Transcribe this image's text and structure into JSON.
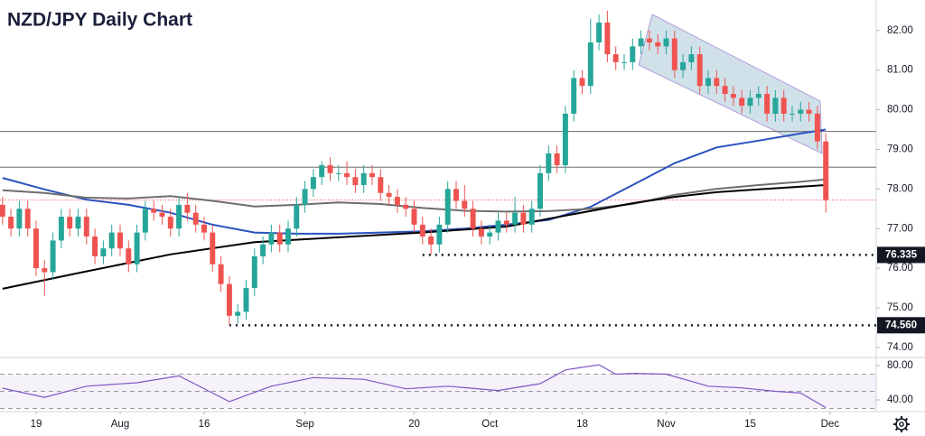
{
  "chart_data": {
    "type": "candlestick",
    "title": "NZD/JPY Daily Chart",
    "up_color": "#26a69a",
    "down_color": "#ef5350",
    "open": [
      77.6,
      77.3,
      77.0,
      77.5,
      77.0,
      76.0,
      75.9,
      76.7,
      77.3,
      77.0,
      77.3,
      76.8,
      76.3,
      76.5,
      76.9,
      76.5,
      76.1,
      76.9,
      77.5,
      77.4,
      77.3,
      77.0,
      77.6,
      77.4,
      77.1,
      76.9,
      76.1,
      75.6,
      74.8,
      74.9,
      75.5,
      76.3,
      76.6,
      76.9,
      76.6,
      77.0,
      77.6,
      78.0,
      78.3,
      78.6,
      78.4,
      78.4,
      78.3,
      78.1,
      78.4,
      78.3,
      77.9,
      77.8,
      77.6,
      77.5,
      77.1,
      76.8,
      76.6,
      77.1,
      78.0,
      77.7,
      77.5,
      77.0,
      76.8,
      76.9,
      77.2,
      77.1,
      77.4,
      77.1,
      77.5,
      78.4,
      78.9,
      78.6,
      79.9,
      80.8,
      80.6,
      81.7,
      82.2,
      81.4,
      81.2,
      81.2,
      81.6,
      81.8,
      81.7,
      81.6,
      81.8,
      81.0,
      81.2,
      81.4,
      80.6,
      80.8,
      80.6,
      80.4,
      80.3,
      80.1,
      80.3,
      80.4,
      79.9,
      80.3,
      79.9,
      79.9,
      80.0,
      79.9,
      79.2
    ],
    "high": [
      77.8,
      77.5,
      77.7,
      77.7,
      77.2,
      76.2,
      76.9,
      77.5,
      77.5,
      77.5,
      77.5,
      77.0,
      76.7,
      77.1,
      77.1,
      76.7,
      77.1,
      77.7,
      77.7,
      77.6,
      77.5,
      77.8,
      77.9,
      77.6,
      77.3,
      77.1,
      76.3,
      75.8,
      75.1,
      75.7,
      76.5,
      76.8,
      77.1,
      77.1,
      77.2,
      77.8,
      78.2,
      78.5,
      78.7,
      78.8,
      78.6,
      78.7,
      78.5,
      78.6,
      78.6,
      78.5,
      78.1,
      78.0,
      77.8,
      77.7,
      77.3,
      77.0,
      77.3,
      78.2,
      78.2,
      78.1,
      77.7,
      77.2,
      77.1,
      77.4,
      77.4,
      77.8,
      77.6,
      77.7,
      78.6,
      79.1,
      79.1,
      80.1,
      81.0,
      81.0,
      82.3,
      82.4,
      82.5,
      81.6,
      81.4,
      81.8,
      82.0,
      82.0,
      81.9,
      82.0,
      82.0,
      81.4,
      81.6,
      81.6,
      81.0,
      81.0,
      80.8,
      80.6,
      80.5,
      80.5,
      80.6,
      80.6,
      80.5,
      80.5,
      80.1,
      80.2,
      80.2,
      80.1,
      79.4
    ],
    "low": [
      77.1,
      76.8,
      76.8,
      76.8,
      75.8,
      75.3,
      75.7,
      76.5,
      76.8,
      76.8,
      76.6,
      76.1,
      76.1,
      76.3,
      76.3,
      75.9,
      75.9,
      76.7,
      77.2,
      77.1,
      76.8,
      76.8,
      77.2,
      76.9,
      76.7,
      75.9,
      75.4,
      74.56,
      74.6,
      74.7,
      75.3,
      76.1,
      76.4,
      76.4,
      76.4,
      76.8,
      77.4,
      77.8,
      78.1,
      78.2,
      78.2,
      78.1,
      77.9,
      77.9,
      78.1,
      77.7,
      77.6,
      77.4,
      77.3,
      76.9,
      76.6,
      76.34,
      76.4,
      76.9,
      77.5,
      77.3,
      76.8,
      76.6,
      76.6,
      76.7,
      76.9,
      76.9,
      76.9,
      76.9,
      77.3,
      78.2,
      78.4,
      78.4,
      79.7,
      80.4,
      80.4,
      81.5,
      81.2,
      81.0,
      81.0,
      81.0,
      81.4,
      81.5,
      81.4,
      81.4,
      80.8,
      80.8,
      81.0,
      80.4,
      80.4,
      80.4,
      80.2,
      80.1,
      79.9,
      79.9,
      80.1,
      79.7,
      79.7,
      79.7,
      79.7,
      79.7,
      79.7,
      79.0,
      77.4
    ],
    "close": [
      77.3,
      77.0,
      77.5,
      77.0,
      76.0,
      75.9,
      76.7,
      77.3,
      77.0,
      77.3,
      76.8,
      76.3,
      76.5,
      76.9,
      76.5,
      76.1,
      76.9,
      77.5,
      77.4,
      77.3,
      77.0,
      77.6,
      77.4,
      77.1,
      76.9,
      76.1,
      75.6,
      74.8,
      74.9,
      75.5,
      76.3,
      76.6,
      76.9,
      76.6,
      77.0,
      77.6,
      78.0,
      78.3,
      78.6,
      78.4,
      78.4,
      78.3,
      78.1,
      78.4,
      78.3,
      77.9,
      77.8,
      77.6,
      77.5,
      77.1,
      76.8,
      76.6,
      77.1,
      78.0,
      77.7,
      77.5,
      77.0,
      76.8,
      76.9,
      77.2,
      77.1,
      77.4,
      77.1,
      77.5,
      78.4,
      78.9,
      78.6,
      79.9,
      80.8,
      80.6,
      81.7,
      82.2,
      81.4,
      81.2,
      81.2,
      81.6,
      81.8,
      81.7,
      81.6,
      81.8,
      81.0,
      81.2,
      81.4,
      80.6,
      80.8,
      80.6,
      80.4,
      80.3,
      80.1,
      80.3,
      80.4,
      79.9,
      80.3,
      79.9,
      79.9,
      80.0,
      79.9,
      79.2,
      77.72
    ],
    "last_price_color": "#ef5350",
    "lines": [
      {
        "color": "#2a52be",
        "x": [
          0,
          5,
          10,
          15,
          20,
          25,
          30,
          35,
          40,
          45,
          50,
          55,
          60,
          65,
          70,
          75,
          80,
          85,
          90,
          95,
          98
        ],
        "values": [
          78.28,
          77.99,
          77.73,
          77.6,
          77.4,
          77.1,
          76.9,
          76.87,
          76.87,
          76.9,
          76.93,
          77.0,
          77.1,
          77.22,
          77.55,
          78.1,
          78.65,
          79.05,
          79.22,
          79.4,
          79.5
        ]
      },
      {
        "color": "#6e6e6e",
        "x": [
          0,
          5,
          10,
          15,
          20,
          25,
          30,
          35,
          40,
          45,
          50,
          55,
          60,
          65,
          70,
          75,
          80,
          85,
          90,
          95,
          98
        ],
        "values": [
          77.97,
          77.9,
          77.78,
          77.76,
          77.82,
          77.7,
          77.56,
          77.6,
          77.66,
          77.62,
          77.52,
          77.45,
          77.43,
          77.44,
          77.5,
          77.62,
          77.85,
          78.0,
          78.1,
          78.18,
          78.24
        ]
      },
      {
        "color": "#000000",
        "x": [
          0,
          10,
          20,
          30,
          40,
          50,
          60,
          65,
          75,
          80,
          85,
          90,
          98
        ],
        "values": [
          75.48,
          75.92,
          76.35,
          76.66,
          76.78,
          76.9,
          77.05,
          77.25,
          77.64,
          77.8,
          77.92,
          77.99,
          78.1
        ]
      }
    ],
    "reference_lines": [
      {
        "value": 79.45,
        "color": "#555555"
      },
      {
        "value": 78.55,
        "color": "#555555"
      }
    ],
    "support_levels": [
      {
        "value": 76.335,
        "label": "76.335",
        "start": 50
      },
      {
        "value": 74.56,
        "label": "74.560",
        "start": 27
      }
    ],
    "ylim": [
      73.77,
      82.77
    ],
    "yticks": [
      {
        "value": 82,
        "label": "82.00"
      },
      {
        "value": 81,
        "label": "81.00"
      },
      {
        "value": 80,
        "label": "80.00"
      },
      {
        "value": 79,
        "label": "79.00"
      },
      {
        "value": 78,
        "label": "78.00"
      },
      {
        "value": 77,
        "label": "77.00"
      },
      {
        "value": 76,
        "label": "76.00"
      },
      {
        "value": 75,
        "label": "75.00"
      },
      {
        "value": 74,
        "label": "74.00"
      }
    ],
    "xlim": [
      -0.3,
      104
    ],
    "xticks": [
      {
        "value": 4,
        "label": "19"
      },
      {
        "value": 14,
        "label": "Aug"
      },
      {
        "value": 24,
        "label": "16"
      },
      {
        "value": 36,
        "label": "Sep"
      },
      {
        "value": 49,
        "label": "20"
      },
      {
        "value": 58,
        "label": "Oct"
      },
      {
        "value": 69,
        "label": "18"
      },
      {
        "value": 79,
        "label": "Nov"
      },
      {
        "value": 89,
        "label": "15"
      },
      {
        "value": 98.5,
        "label": "Dec"
      }
    ],
    "grid": false,
    "rsi": {
      "color": "#7e57c2",
      "ylim": [
        27.4,
        87.4
      ],
      "yticks": [
        {
          "value": 80,
          "label": "80.00"
        },
        {
          "value": 40,
          "label": "40.00"
        }
      ],
      "levels": [
        70,
        50,
        30
      ],
      "x": [
        0,
        5,
        10,
        16,
        21,
        27,
        32,
        37,
        43,
        48,
        53,
        59,
        64,
        67,
        71,
        73,
        75,
        79,
        84,
        88,
        92,
        95,
        98
      ],
      "values": [
        53.7,
        43,
        56,
        60,
        68,
        38,
        56,
        66,
        64,
        53,
        56,
        51,
        59,
        75,
        81,
        70,
        71,
        70,
        56,
        54,
        50,
        48,
        31
      ]
    }
  }
}
